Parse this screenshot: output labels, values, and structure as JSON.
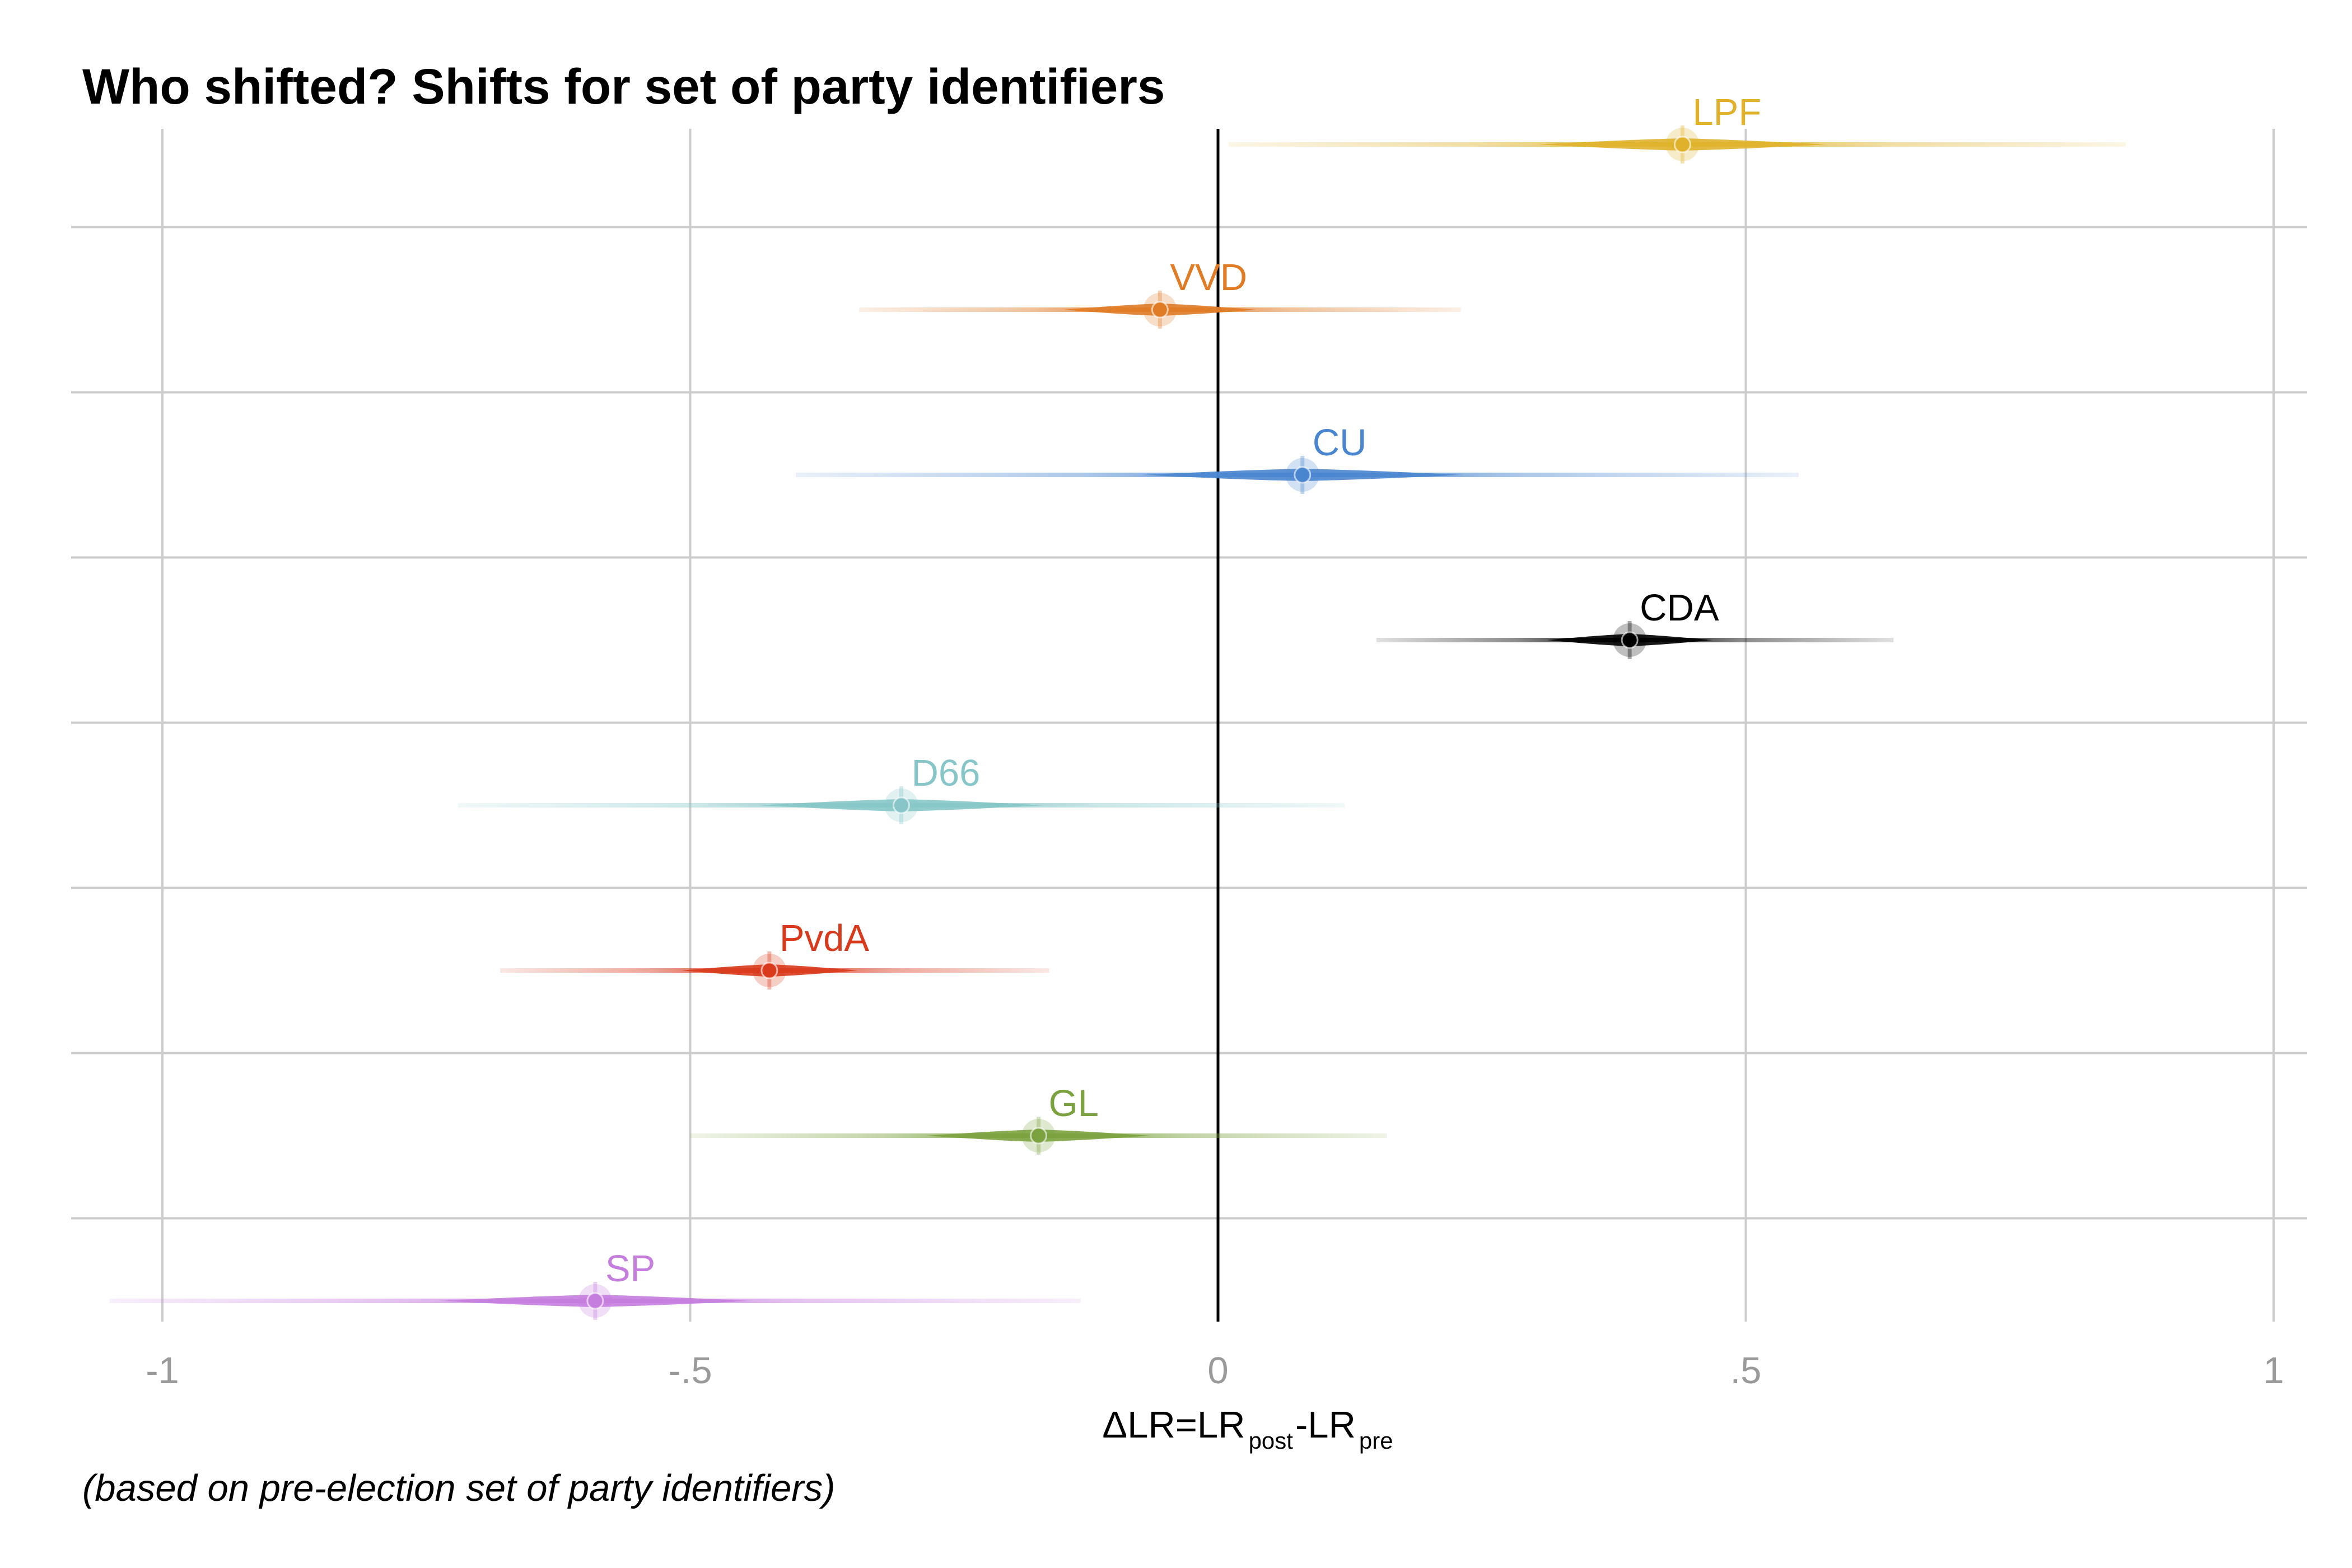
{
  "chart_data": {
    "type": "interval",
    "title": "Who shifted? Shifts for set of party identifiers",
    "caption": "(based on pre-election set of party identifiers)",
    "xlabel": {
      "main": "ΔLR=LR",
      "sub1": "post",
      "mid": "-LR",
      "sub2": "pre"
    },
    "xlim": [
      -1.06,
      1.03
    ],
    "xticks": [
      {
        "value": -1,
        "label": "-1"
      },
      {
        "value": -0.5,
        "label": "-.5"
      },
      {
        "value": 0,
        "label": "0"
      },
      {
        "value": 0.5,
        "label": ".5"
      },
      {
        "value": 1,
        "label": "1"
      }
    ],
    "reference_line": 0,
    "grid": true,
    "series": [
      {
        "name": "LPF",
        "estimate": 0.44,
        "low": 0.01,
        "high": 0.86,
        "color": "#E0B22C"
      },
      {
        "name": "VVD",
        "estimate": -0.055,
        "low": -0.34,
        "high": 0.23,
        "color": "#E07B26"
      },
      {
        "name": "CU",
        "estimate": 0.08,
        "low": -0.4,
        "high": 0.55,
        "color": "#4A86CF"
      },
      {
        "name": "CDA",
        "estimate": 0.39,
        "low": 0.15,
        "high": 0.64,
        "color": "#000000"
      },
      {
        "name": "D66",
        "estimate": -0.3,
        "low": -0.72,
        "high": 0.12,
        "color": "#86C6C8"
      },
      {
        "name": "PvdA",
        "estimate": -0.425,
        "low": -0.68,
        "high": -0.16,
        "color": "#D93A1B"
      },
      {
        "name": "GL",
        "estimate": -0.17,
        "low": -0.5,
        "high": 0.16,
        "color": "#7BA23F"
      },
      {
        "name": "SP",
        "estimate": -0.59,
        "low": -1.05,
        "high": -0.13,
        "color": "#C57DDE"
      }
    ]
  }
}
